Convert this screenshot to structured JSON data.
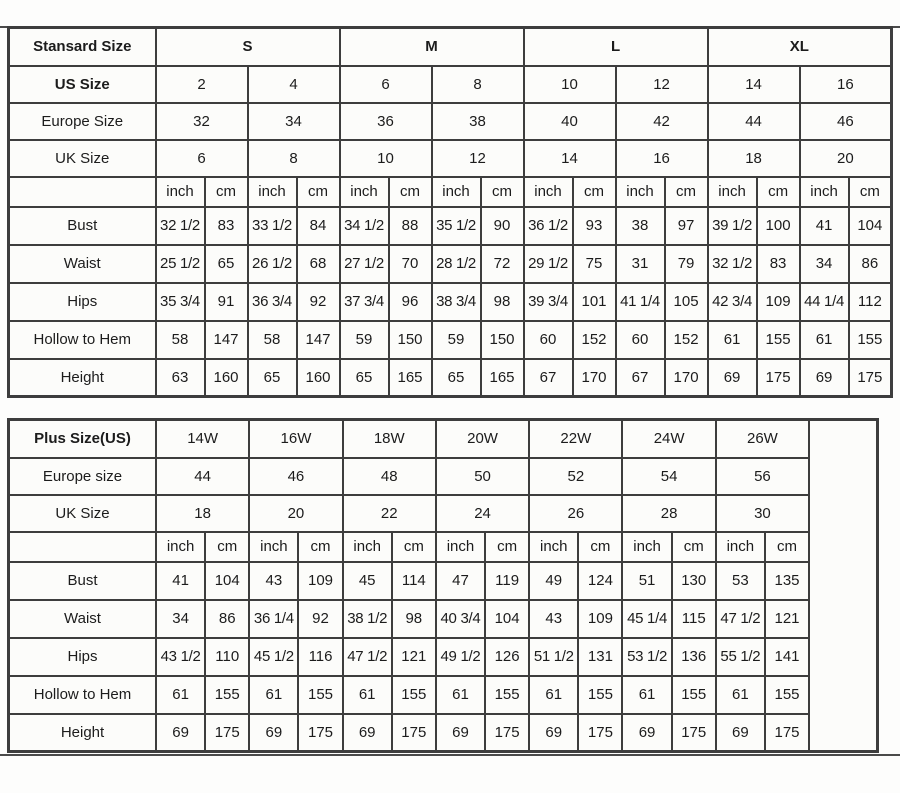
{
  "page": {
    "background": "#fdfdfc",
    "border_color": "#3d3d3d",
    "text_color": "#1c1c1c"
  },
  "standard_table": {
    "title": "Stansard Size",
    "size_groups": [
      "S",
      "M",
      "L",
      "XL"
    ],
    "header_rows": [
      {
        "label": "US Size",
        "bold": true,
        "values": [
          "2",
          "4",
          "6",
          "8",
          "10",
          "12",
          "14",
          "16"
        ]
      },
      {
        "label": "Europe Size",
        "bold": false,
        "values": [
          "32",
          "34",
          "36",
          "38",
          "40",
          "42",
          "44",
          "46"
        ]
      },
      {
        "label": "UK Size",
        "bold": false,
        "values": [
          "6",
          "8",
          "10",
          "12",
          "14",
          "16",
          "18",
          "20"
        ]
      }
    ],
    "unit_labels": [
      "inch",
      "cm"
    ],
    "measurement_rows": [
      {
        "label": "Bust",
        "values": [
          "32 1/2",
          "83",
          "33 1/2",
          "84",
          "34 1/2",
          "88",
          "35 1/2",
          "90",
          "36 1/2",
          "93",
          "38",
          "97",
          "39 1/2",
          "100",
          "41",
          "104"
        ]
      },
      {
        "label": "Waist",
        "values": [
          "25 1/2",
          "65",
          "26 1/2",
          "68",
          "27 1/2",
          "70",
          "28 1/2",
          "72",
          "29 1/2",
          "75",
          "31",
          "79",
          "32 1/2",
          "83",
          "34",
          "86"
        ]
      },
      {
        "label": "Hips",
        "values": [
          "35 3/4",
          "91",
          "36 3/4",
          "92",
          "37 3/4",
          "96",
          "38 3/4",
          "98",
          "39 3/4",
          "101",
          "41 1/4",
          "105",
          "42 3/4",
          "109",
          "44 1/4",
          "112"
        ]
      },
      {
        "label": "Hollow to Hem",
        "values": [
          "58",
          "147",
          "58",
          "147",
          "59",
          "150",
          "59",
          "150",
          "60",
          "152",
          "60",
          "152",
          "61",
          "155",
          "61",
          "155"
        ]
      },
      {
        "label": "Height",
        "values": [
          "63",
          "160",
          "65",
          "160",
          "65",
          "165",
          "65",
          "165",
          "67",
          "170",
          "67",
          "170",
          "69",
          "175",
          "69",
          "175"
        ]
      }
    ]
  },
  "plus_table": {
    "title": "Plus Size(US)",
    "sizes": [
      "14W",
      "16W",
      "18W",
      "20W",
      "22W",
      "24W",
      "26W"
    ],
    "header_rows": [
      {
        "label": "Europe size",
        "bold": false,
        "values": [
          "44",
          "46",
          "48",
          "50",
          "52",
          "54",
          "56"
        ]
      },
      {
        "label": "UK Size",
        "bold": false,
        "values": [
          "18",
          "20",
          "22",
          "24",
          "26",
          "28",
          "30"
        ]
      }
    ],
    "unit_labels": [
      "inch",
      "cm"
    ],
    "measurement_rows": [
      {
        "label": "Bust",
        "values": [
          "41",
          "104",
          "43",
          "109",
          "45",
          "114",
          "47",
          "119",
          "49",
          "124",
          "51",
          "130",
          "53",
          "135"
        ]
      },
      {
        "label": "Waist",
        "values": [
          "34",
          "86",
          "36 1/4",
          "92",
          "38 1/2",
          "98",
          "40 3/4",
          "104",
          "43",
          "109",
          "45 1/4",
          "115",
          "47 1/2",
          "121"
        ]
      },
      {
        "label": "Hips",
        "values": [
          "43 1/2",
          "110",
          "45 1/2",
          "116",
          "47 1/2",
          "121",
          "49 1/2",
          "126",
          "51 1/2",
          "131",
          "53 1/2",
          "136",
          "55 1/2",
          "141"
        ]
      },
      {
        "label": "Hollow to Hem",
        "values": [
          "61",
          "155",
          "61",
          "155",
          "61",
          "155",
          "61",
          "155",
          "61",
          "155",
          "61",
          "155",
          "61",
          "155"
        ]
      },
      {
        "label": "Height",
        "values": [
          "69",
          "175",
          "69",
          "175",
          "69",
          "175",
          "69",
          "175",
          "69",
          "175",
          "69",
          "175",
          "69",
          "175"
        ]
      }
    ]
  }
}
